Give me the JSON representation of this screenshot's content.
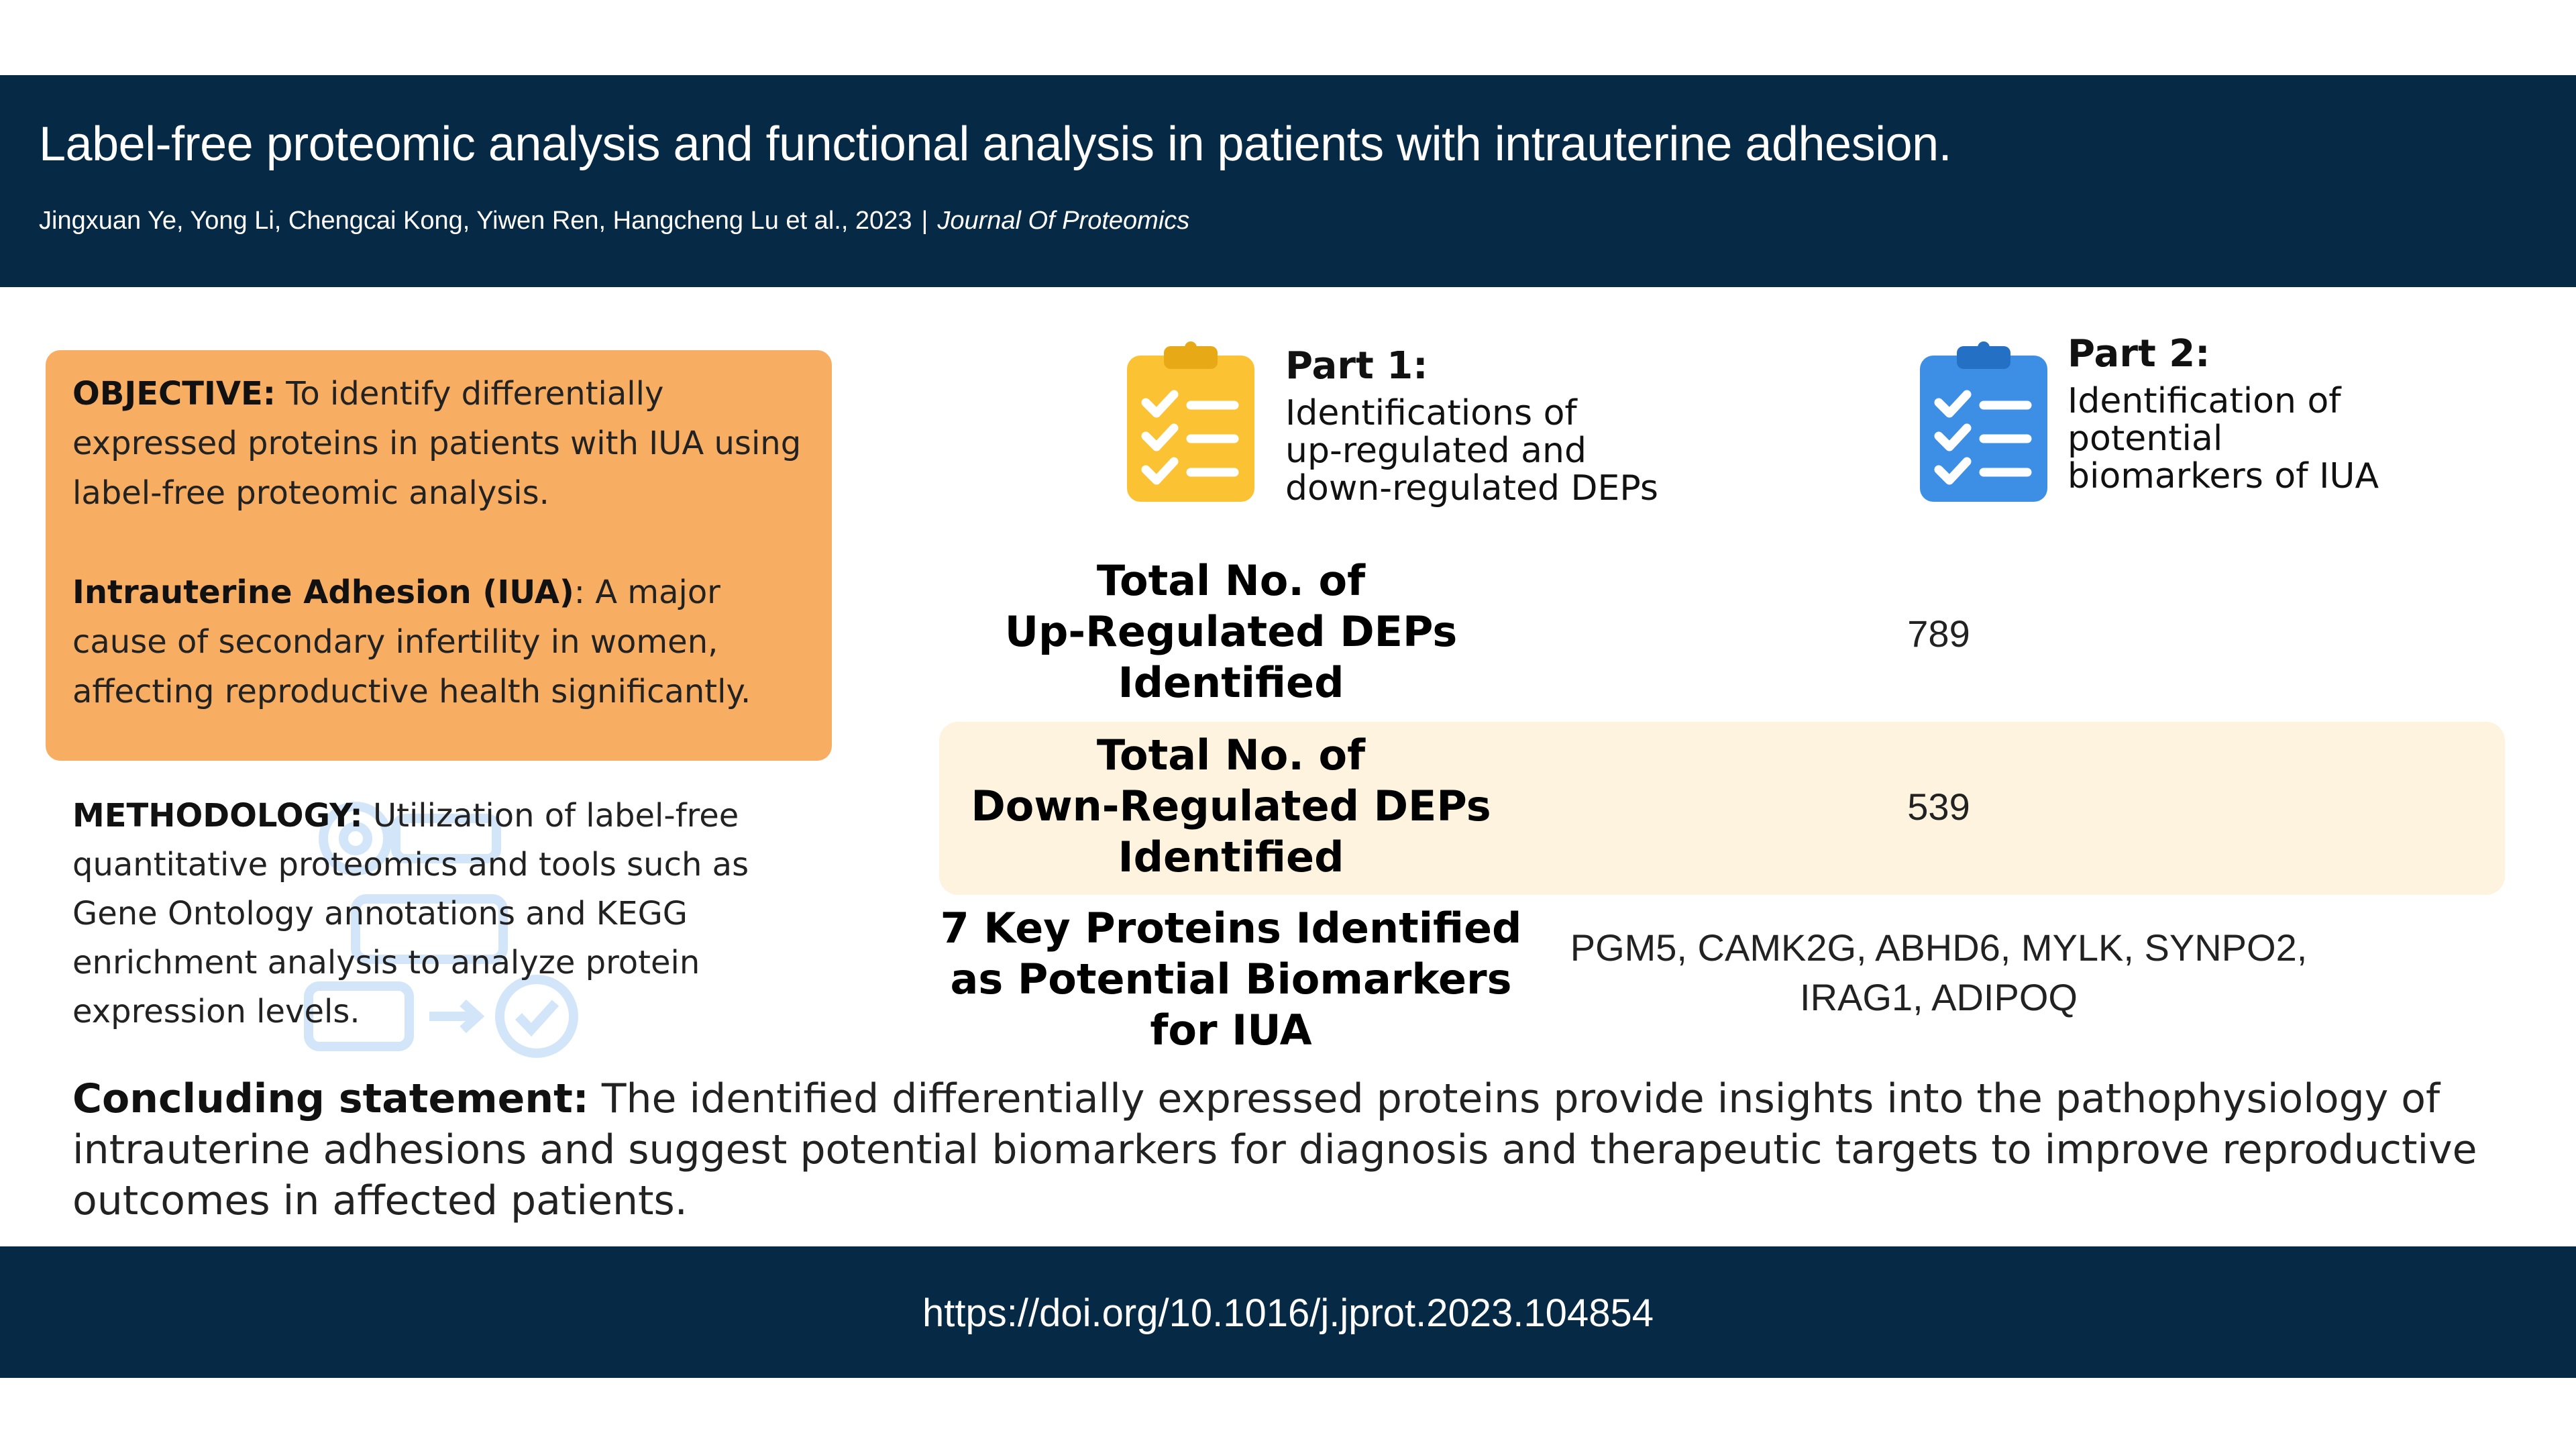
{
  "header": {
    "title": "Label-free proteomic analysis and functional analysis in patients with intrauterine adhesion.",
    "authors_year": "Jingxuan Ye, Yong Li, Chengcai Kong, Yiwen Ren, Hangcheng Lu et al., 2023",
    "separator": "|",
    "journal": "Journal Of Proteomics"
  },
  "objective": {
    "label": "OBJECTIVE:",
    "text": " To identify differentially expressed proteins in patients with IUA using label-free proteomic analysis."
  },
  "iua": {
    "label": "Intrauterine Adhesion (IUA)",
    "text": ": A major cause of secondary infertility in women, affecting reproductive health significantly."
  },
  "methodology": {
    "label": "METHODOLOGY:",
    "text": " Utilization of label-free quantitative proteomics and tools such as Gene Ontology annotations and KEGG enrichment analysis to analyze protein expression levels."
  },
  "parts": [
    {
      "title": "Part 1:",
      "line1": "Identifications of",
      "line2": "up-regulated and",
      "line3": "down-regulated DEPs",
      "icon": "clipboard-checklist-icon",
      "color": "#fbc234"
    },
    {
      "title": "Part 2:",
      "line1": "Identification of",
      "line2": "potential",
      "line3": "biomarkers of IUA",
      "icon": "clipboard-checklist-icon",
      "color": "#3d8fe5"
    }
  ],
  "stats": [
    {
      "label_line1": "Total No. of",
      "label_line2": "Up-Regulated DEPs",
      "label_line3": "Identified",
      "value": "789"
    },
    {
      "label_line1": "Total No. of",
      "label_line2": "Down-Regulated DEPs",
      "label_line3": "Identified",
      "value": "539"
    },
    {
      "label_line1": "7 Key Proteins Identified",
      "label_line2": "as Potential Biomarkers",
      "label_line3": "for IUA",
      "value_line1": "PGM5, CAMK2G, ABHD6, MYLK, SYNPO2,",
      "value_line2": "IRAG1, ADIPOQ"
    }
  ],
  "concluding": {
    "label": "Concluding statement:",
    "text": " The identified differentially expressed proteins provide insights into the pathophysiology of intrauterine adhesions and suggest potential biomarkers for diagnosis and therapeutic targets to improve reproductive outcomes in affected patients."
  },
  "footer": {
    "doi": "https://doi.org/10.1016/j.jprot.2023.104854"
  },
  "colors": {
    "header_bg": "#062a45",
    "objective_bg": "#f7ae62",
    "highlight_row_bg": "#fdf3df"
  }
}
